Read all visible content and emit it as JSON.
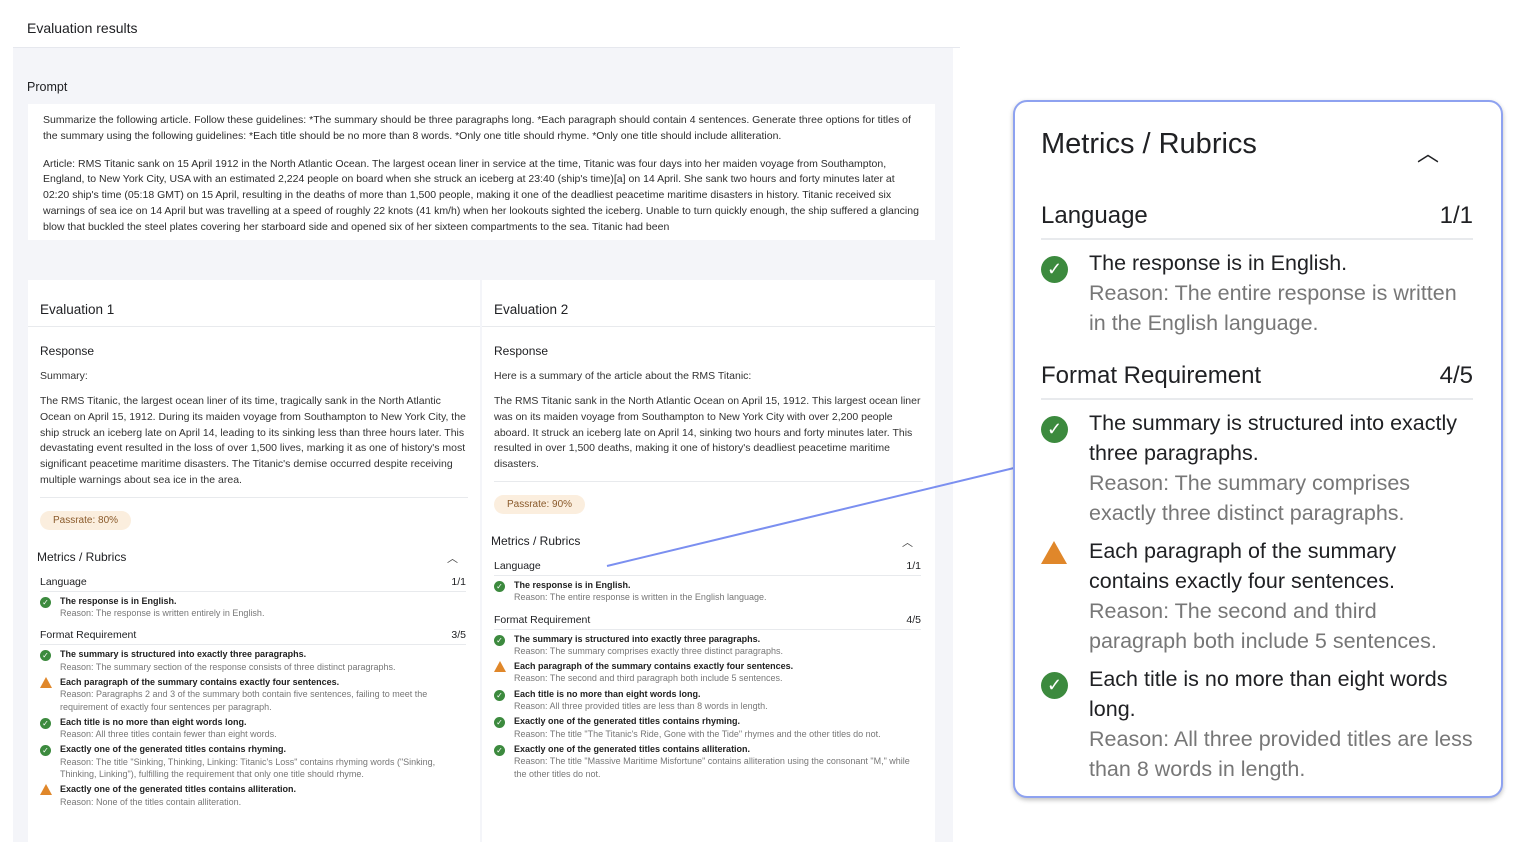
{
  "page": {
    "title": "Evaluation results"
  },
  "prompt": {
    "label": "Prompt",
    "paragraphs": [
      "Summarize the following article. Follow these guidelines: *The summary should be three paragraphs long. *Each paragraph should contain 4 sentences. Generate three options for titles of the summary using the following guidelines: *Each title should be no more than 8 words. *Only one title should rhyme. *Only one title should include alliteration.",
      "Article: RMS Titanic sank on 15 April 1912 in the North Atlantic Ocean. The largest ocean liner in service at the time, Titanic was four days into her maiden voyage from Southampton, England, to New York City, USA with an estimated 2,224 people on board when she struck an iceberg at 23:40 (ship's time)[a] on 14 April. She sank two hours and forty minutes later at 02:20 ship's time (05:18 GMT) on 15 April, resulting in the deaths of more than 1,500 people, making it one of the deadliest peacetime maritime disasters in history. Titanic received six warnings of sea ice on 14 April but was travelling at a speed of roughly 22 knots (41 km/h) when her lookouts sighted the iceberg. Unable to turn quickly enough, the ship suffered a glancing blow that buckled the steel plates covering her starboard side and opened six of her sixteen compartments to the sea. Titanic had been"
    ]
  },
  "colors": {
    "pass": "#3c8a3e",
    "warn": "#e0872a",
    "accent": "#8ea2f0",
    "pill_bg": "#fbeede"
  },
  "evaluations": [
    {
      "title": "Evaluation 1",
      "response_label": "Response",
      "summary_head": "Summary:",
      "summary": "The RMS Titanic, the largest ocean liner of its time, tragically sank in the North Atlantic Ocean on April 15, 1912. During its maiden voyage from Southampton to New York City, the ship struck an iceberg late on April 14, leading to its sinking less than three hours later. This devastating event resulted in the loss of over 1,500 lives, marking it as one of history's most significant peacetime maritime disasters. The Titanic's demise occurred despite receiving multiple warnings about sea ice in the area.",
      "passrate": "Passrate: 80%",
      "metrics_label": "Metrics / Rubrics",
      "categories": [
        {
          "name": "Language",
          "score": "1/1",
          "items": [
            {
              "status": "pass",
              "icon": "check-circle-icon",
              "criterion": "The response is in English.",
              "reason": "Reason: The response is written entirely in English."
            }
          ]
        },
        {
          "name": "Format Requirement",
          "score": "3/5",
          "items": [
            {
              "status": "pass",
              "icon": "check-circle-icon",
              "criterion": "The summary is structured into exactly three paragraphs.",
              "reason": "Reason: The summary section of the response consists of three distinct paragraphs."
            },
            {
              "status": "warn",
              "icon": "warning-icon",
              "criterion": "Each paragraph of the summary contains exactly four sentences.",
              "reason": "Reason: Paragraphs 2 and 3 of the summary both contain five sentences, failing to meet the requirement of exactly four sentences per paragraph."
            },
            {
              "status": "pass",
              "icon": "check-circle-icon",
              "criterion": "Each title is no more than eight words long.",
              "reason": "Reason: All three titles contain fewer than eight words."
            },
            {
              "status": "pass",
              "icon": "check-circle-icon",
              "criterion": "Exactly one of the generated titles contains rhyming.",
              "reason": "Reason: The title \"Sinking, Thinking, Linking: Titanic's Loss\" contains rhyming words (\"Sinking, Thinking, Linking\"), fulfilling the requirement that only one title should rhyme."
            },
            {
              "status": "warn",
              "icon": "warning-icon",
              "criterion": "Exactly one of the generated titles contains alliteration.",
              "reason": "Reason: None of the titles contain alliteration."
            }
          ]
        }
      ]
    },
    {
      "title": "Evaluation 2",
      "response_label": "Response",
      "summary_head": "Here is a summary of the article about the RMS Titanic:",
      "summary": "The RMS Titanic sank in the North Atlantic Ocean on April 15, 1912. This largest ocean liner was on its maiden voyage from Southampton to New York City with over 2,200 people aboard. It struck an iceberg late on April 14, sinking two hours and forty minutes later. This resulted in over 1,500 deaths, making it one of history's deadliest peacetime maritime disasters.",
      "passrate": "Passrate: 90%",
      "metrics_label": "Metrics / Rubrics",
      "categories": [
        {
          "name": "Language",
          "score": "1/1",
          "items": [
            {
              "status": "pass",
              "icon": "check-circle-icon",
              "criterion": "The response is in English.",
              "reason": "Reason: The entire response is written in the English language."
            }
          ]
        },
        {
          "name": "Format Requirement",
          "score": "4/5",
          "items": [
            {
              "status": "pass",
              "icon": "check-circle-icon",
              "criterion": "The summary is structured into exactly three paragraphs.",
              "reason": "Reason: The summary comprises exactly three distinct paragraphs."
            },
            {
              "status": "warn",
              "icon": "warning-icon",
              "criterion": "Each paragraph of the summary contains exactly four sentences.",
              "reason": "Reason: The second and third paragraph both include 5 sentences."
            },
            {
              "status": "pass",
              "icon": "check-circle-icon",
              "criterion": "Each title is no more than eight words long.",
              "reason": "Reason: All three provided titles are less than 8 words in length."
            },
            {
              "status": "pass",
              "icon": "check-circle-icon",
              "criterion": "Exactly one of the generated titles contains rhyming.",
              "reason": "Reason: The title \"The Titanic's Ride, Gone with the Tide\" rhymes and the other titles do not."
            },
            {
              "status": "pass",
              "icon": "check-circle-icon",
              "criterion": "Exactly one of the generated titles contains alliteration.",
              "reason": "Reason: The title \"Massive Maritime Misfortune\" contains alliteration using the consonant \"M,\" while the other titles do not."
            }
          ]
        }
      ]
    }
  ]
}
